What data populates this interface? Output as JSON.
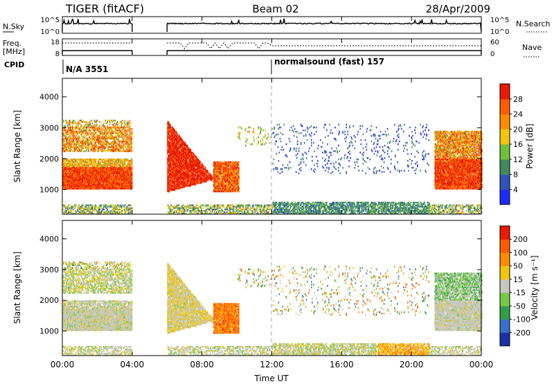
{
  "header": {
    "radar": "TIGER (fitACF)",
    "beam": "Beam 02",
    "date": "28/Apr/2009"
  },
  "strips": {
    "nsky_label": "N.Sky",
    "nsky_ticks": [
      "10^5",
      "10^0"
    ],
    "nsearch_label": "N.Search",
    "freq_label": "Freq.",
    "freq_unit": "[MHz]",
    "freq_ticks": [
      "18",
      "8"
    ],
    "nave_label": "Nave",
    "nave_ticks": [
      "60",
      "0"
    ],
    "cpid_label": "CPID",
    "cpid_segments": [
      {
        "text": "N/A 3551",
        "start_hour": 0.0
      },
      {
        "text": "normalsound (fast) 157",
        "start_hour": 12.0
      }
    ]
  },
  "chart_data": [
    {
      "type": "heatmap",
      "parameter": "Power",
      "ylabel": "Slant Range [km]",
      "ylim": [
        200,
        4600
      ],
      "yticks": [
        "1000",
        "2000",
        "3000",
        "4000"
      ],
      "xlim_hours": [
        0,
        24
      ],
      "colorbar": {
        "label": "Power [dB]",
        "ticks": [
          "4",
          "8",
          "12",
          "16",
          "20",
          "24",
          "28"
        ],
        "colors": [
          "#1d2bff",
          "#2f55b8",
          "#3f8a5e",
          "#6fbf3a",
          "#f2c60d",
          "#ff8c00",
          "#ff5a00",
          "#e81a00"
        ]
      }
    },
    {
      "type": "heatmap",
      "parameter": "Velocity",
      "ylabel": "Slant Range [km]",
      "ylim": [
        200,
        4600
      ],
      "yticks": [
        "1000",
        "2000",
        "3000",
        "4000"
      ],
      "xlim_hours": [
        0,
        24
      ],
      "colorbar": {
        "label": "Velocity [m s⁻¹]",
        "ticks": [
          "200",
          "100",
          "50",
          "15",
          "-15",
          "-50",
          "-100",
          "-200"
        ],
        "colors": [
          "#1a2fa8",
          "#3670c8",
          "#2f9e4a",
          "#76c944",
          "#c8c8c0",
          "#f2c60d",
          "#ff8c00",
          "#ff5a00",
          "#e81a00"
        ]
      }
    }
  ],
  "xaxis": {
    "label": "Time UT",
    "ticks": [
      "00:00",
      "04:00",
      "08:00",
      "12:00",
      "16:00",
      "20:00",
      "00:00"
    ]
  }
}
